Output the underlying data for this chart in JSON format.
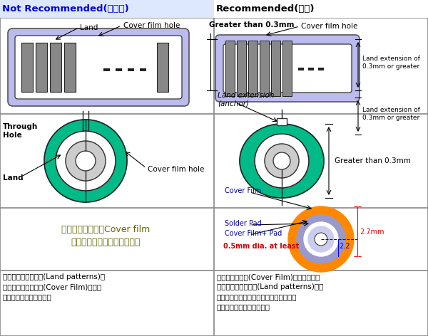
{
  "bg_color": "#ffffff",
  "header_left": "Not Recommended(不建議)",
  "header_right": "Recommended(建議)",
  "header_left_color": "#0000dd",
  "header_right_color": "#000000",
  "header_bg_left": "#dde8ff",
  "header_bg_right": "#ffffff",
  "border_color": "#888888",
  "pad_lavender": "#aaaadd",
  "pad_lavender_bg": "#bbbbee",
  "bar_gray": "#888888",
  "bar_edge": "#333333",
  "teal_color": "#00bb88",
  "white": "#ffffff",
  "gray_ring": "#cccccc",
  "orange_color": "#ff8800",
  "lav_mid": "#9999cc",
  "blue_label": "#0000aa",
  "red_label": "#cc0000",
  "text_olive": "#666600",
  "text_black": "#000000",
  "text_desc_left_1": "裸露在外的燊墊線路(Land patterns)沒",
  "text_desc_left_2": "有部份被絕緣覆蓋層(Cover Film)覆蓋固",
  "text_desc_left_3": "定時容易因作業而剤落。",
  "text_desc_right_1": "建議絕緣覆蓋層(Cover Film)要覆蓋住部份",
  "text_desc_right_2": "裸露在外的燊墊線路(Land patterns)，這",
  "text_desc_right_3": "樣可以確保燊墊被固定於小板的基板，避",
  "text_desc_right_4": "免燊墊因燊锡加熱時剤落。",
  "text_left_row3_1": "通孔的燊墊必須用Cover film",
  "text_left_row3_2": "覆蓋住，以避免使用時剤落。"
}
